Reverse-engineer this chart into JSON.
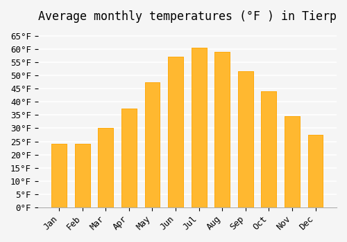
{
  "title": "Average monthly temperatures (°F ) in Tierp",
  "months": [
    "Jan",
    "Feb",
    "Mar",
    "Apr",
    "May",
    "Jun",
    "Jul",
    "Aug",
    "Sep",
    "Oct",
    "Nov",
    "Dec"
  ],
  "values": [
    24,
    24,
    30,
    37.5,
    47.5,
    57,
    60.5,
    59,
    51.5,
    44,
    34.5,
    27.5
  ],
  "bar_color": "#FFA500",
  "bar_edge_color": "#FFC04C",
  "ylim": [
    0,
    68
  ],
  "yticks": [
    0,
    5,
    10,
    15,
    20,
    25,
    30,
    35,
    40,
    45,
    50,
    55,
    60,
    65
  ],
  "background_color": "#F5F5F5",
  "grid_color": "#FFFFFF",
  "title_fontsize": 12,
  "tick_fontsize": 9
}
